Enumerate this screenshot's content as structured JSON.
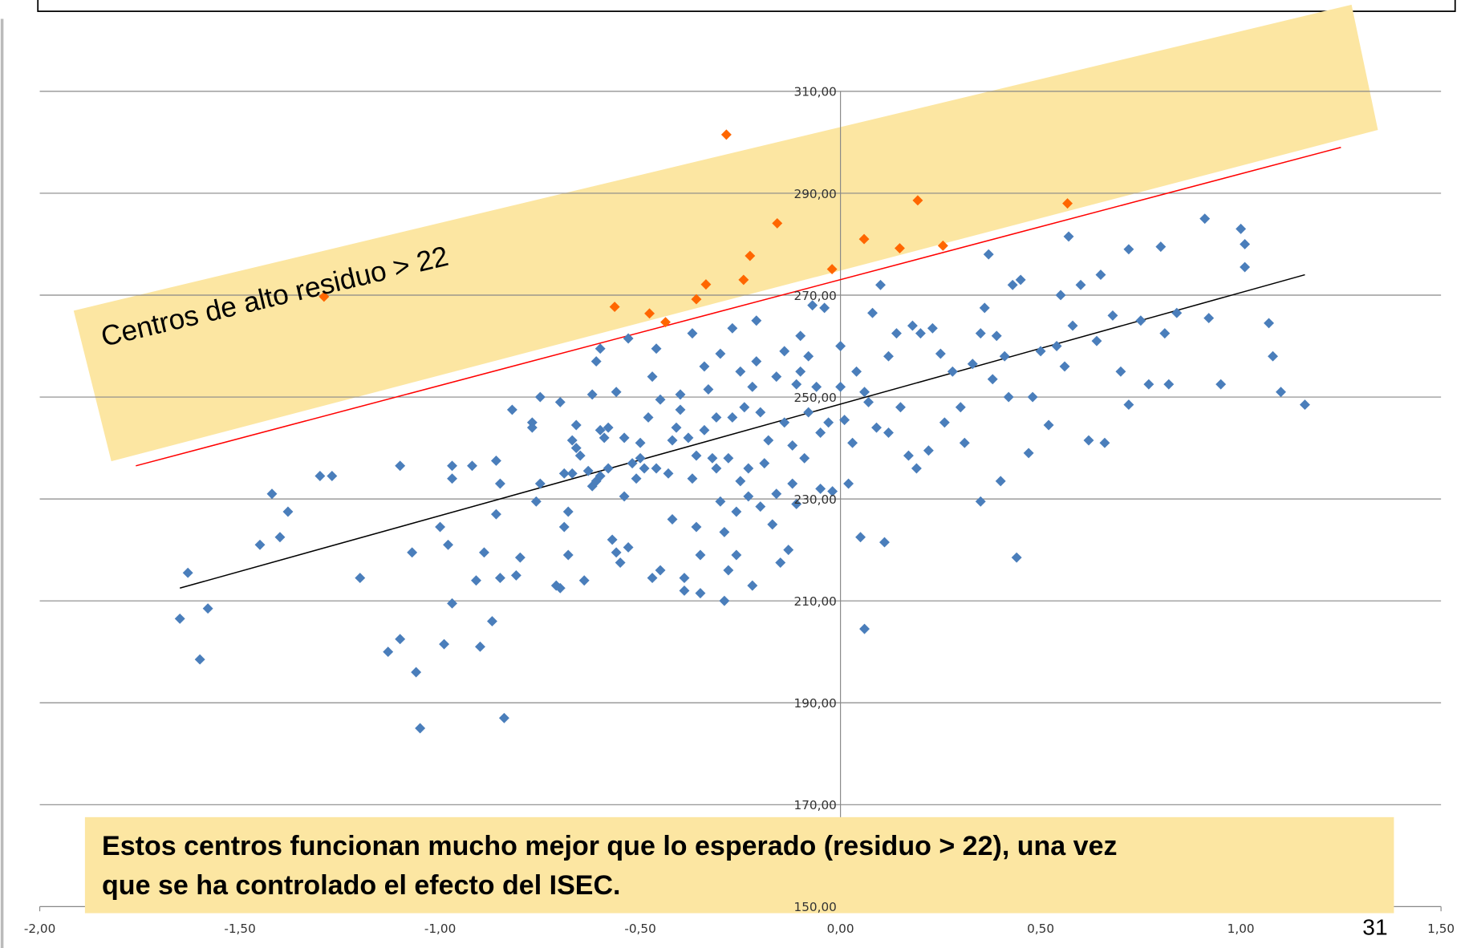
{
  "chart_data": {
    "type": "scatter",
    "xlim": [
      -2,
      1.5
    ],
    "ylim": [
      150,
      310
    ],
    "xticks": [
      {
        "value": -2,
        "label": "-2,00"
      },
      {
        "value": -1.5,
        "label": "-1,50"
      },
      {
        "value": -1,
        "label": "-1,00"
      },
      {
        "value": -0.5,
        "label": "-0,50"
      },
      {
        "value": 0,
        "label": "0,00"
      },
      {
        "value": 0.5,
        "label": "0,50"
      },
      {
        "value": 1,
        "label": "1,00"
      },
      {
        "value": 1.5,
        "label": "1,50"
      }
    ],
    "yticks": [
      {
        "value": 150,
        "label": "150,00"
      },
      {
        "value": 170,
        "label": "170,00"
      },
      {
        "value": 190,
        "label": "190,00"
      },
      {
        "value": 210,
        "label": "210,00"
      },
      {
        "value": 230,
        "label": "230,00"
      },
      {
        "value": 250,
        "label": "250,00"
      },
      {
        "value": 270,
        "label": "270,00"
      },
      {
        "value": 290,
        "label": "290,00"
      },
      {
        "value": 310,
        "label": "310,00"
      }
    ],
    "grid": true,
    "series": [
      {
        "color": "#4a7ebb",
        "x": [
          -1.65,
          -1.63,
          -1.6,
          -1.58,
          -1.45,
          -1.42,
          -1.4,
          -1.38,
          -1.3,
          -1.27,
          -1.2,
          -1.13,
          -1.1,
          -1.1,
          -1.07,
          -1.06,
          -1.05,
          -1,
          -0.99,
          -0.98,
          -0.97,
          -0.97,
          -0.97,
          -0.92,
          -0.91,
          -0.9,
          -0.89,
          -0.87,
          -0.86,
          -0.86,
          -0.85,
          -0.85,
          -0.84,
          -0.82,
          -0.81,
          -0.8,
          -0.77,
          -0.77,
          -0.76,
          -0.75,
          -0.75,
          -0.71,
          -0.7,
          -0.7,
          -0.69,
          -0.69,
          -0.68,
          -0.68,
          -0.67,
          -0.67,
          -0.66,
          -0.66,
          -0.65,
          -0.64,
          -0.63,
          -0.62,
          -0.62,
          -0.61,
          -0.6,
          -0.6,
          -0.6,
          -0.61,
          -0.59,
          -0.58,
          -0.58,
          -0.57,
          -0.56,
          -0.56,
          -0.55,
          -0.54,
          -0.54,
          -0.53,
          -0.53,
          -0.52,
          -0.51,
          -0.5,
          -0.5,
          -0.49,
          -0.48,
          -0.47,
          -0.47,
          -0.46,
          -0.46,
          -0.45,
          -0.45,
          -0.43,
          -0.42,
          -0.42,
          -0.41,
          -0.4,
          -0.4,
          -0.39,
          -0.39,
          -0.38,
          -0.37,
          -0.37,
          -0.36,
          -0.36,
          -0.35,
          -0.35,
          -0.34,
          -0.34,
          -0.33,
          -0.32,
          -0.31,
          -0.31,
          -0.3,
          -0.3,
          -0.29,
          -0.29,
          -0.28,
          -0.28,
          -0.27,
          -0.27,
          -0.26,
          -0.26,
          -0.25,
          -0.25,
          -0.24,
          -0.23,
          -0.23,
          -0.22,
          -0.22,
          -0.21,
          -0.21,
          -0.2,
          -0.2,
          -0.19,
          -0.18,
          -0.17,
          -0.16,
          -0.16,
          -0.15,
          -0.14,
          -0.14,
          -0.13,
          -0.12,
          -0.12,
          -0.11,
          -0.11,
          -0.1,
          -0.1,
          -0.09,
          -0.08,
          -0.08,
          -0.07,
          -0.06,
          -0.05,
          -0.05,
          -0.04,
          -0.03,
          -0.02,
          0,
          0,
          0.01,
          0.02,
          0.03,
          0.04,
          0.05,
          0.06,
          0.06,
          0.07,
          0.08,
          0.09,
          0.1,
          0.11,
          0.12,
          0.12,
          0.14,
          0.15,
          0.17,
          0.18,
          0.19,
          0.2,
          0.22,
          0.23,
          0.25,
          0.26,
          0.28,
          0.3,
          0.31,
          0.33,
          0.35,
          0.35,
          0.36,
          0.37,
          0.38,
          0.39,
          0.4,
          0.41,
          0.42,
          0.43,
          0.44,
          0.45,
          0.47,
          0.48,
          0.5,
          0.52,
          0.54,
          0.55,
          0.56,
          0.57,
          0.58,
          0.6,
          0.62,
          0.64,
          0.65,
          0.66,
          0.68,
          0.7,
          0.72,
          0.72,
          0.75,
          0.77,
          0.8,
          0.81,
          0.82,
          0.84,
          0.91,
          0.92,
          0.95,
          1,
          1.01,
          1.01,
          1.07,
          1.08,
          1.1,
          1.16
        ],
        "values": [
          206.5,
          215.5,
          198.5,
          208.5,
          221,
          231,
          222.5,
          227.5,
          234.5,
          234.5,
          214.5,
          200,
          236.5,
          202.5,
          219.5,
          196,
          185,
          224.5,
          201.5,
          221,
          209.5,
          236.5,
          234,
          236.5,
          214,
          201,
          219.5,
          206,
          237.5,
          227,
          233,
          214.5,
          187,
          247.5,
          215,
          218.5,
          245,
          244,
          229.5,
          250,
          233,
          213,
          212.5,
          249,
          235,
          224.5,
          219,
          227.5,
          235,
          241.5,
          240,
          244.5,
          238.5,
          214,
          235.5,
          250.5,
          232.5,
          233.5,
          234.5,
          243.5,
          259.5,
          257,
          242,
          244,
          236,
          222,
          251,
          219.5,
          217.5,
          242,
          230.5,
          220.5,
          261.5,
          237,
          234,
          238,
          241,
          236,
          246,
          254,
          214.5,
          236,
          259.5,
          249.5,
          216,
          235,
          241.5,
          226,
          244,
          250.5,
          247.5,
          212,
          214.5,
          242,
          262.5,
          234,
          238.5,
          224.5,
          211.5,
          219,
          256,
          243.5,
          251.5,
          238,
          246,
          236,
          229.5,
          258.5,
          210,
          223.5,
          216,
          238,
          263.5,
          246,
          227.5,
          219,
          255,
          233.5,
          248,
          230.5,
          236,
          252,
          213,
          257,
          265,
          247,
          228.5,
          237,
          241.5,
          225,
          254,
          231,
          217.5,
          259,
          245,
          220,
          240.5,
          233,
          252.5,
          229,
          262,
          255,
          238,
          247,
          258,
          268,
          252,
          243,
          232,
          267.5,
          245,
          231.5,
          260,
          252,
          245.5,
          233,
          241,
          255,
          222.5,
          204.5,
          251,
          249,
          266.5,
          244,
          272,
          221.5,
          258,
          243,
          262.5,
          248,
          238.5,
          264,
          236,
          262.5,
          239.5,
          263.5,
          258.5,
          245,
          255,
          248,
          241,
          256.5,
          262.5,
          229.5,
          267.5,
          278,
          253.5,
          262,
          233.5,
          258,
          250,
          272,
          218.5,
          273,
          239,
          250,
          259,
          244.5,
          260,
          270,
          256,
          281.5,
          264,
          272,
          241.5,
          261,
          274,
          241,
          266,
          255,
          279,
          248.5,
          265,
          252.5,
          279.5,
          262.5,
          252.5,
          266.5,
          285,
          265.5,
          252.5,
          283,
          275.5,
          280,
          264.5,
          258,
          251,
          248.5
        ]
      },
      {
        "color": "#ff6600",
        "x": [
          -1.29,
          -0.564,
          -0.477,
          -0.437,
          -0.36,
          -0.336,
          -0.285,
          -0.242,
          -0.226,
          -0.158,
          -0.021,
          0.059,
          0.148,
          0.193,
          0.256,
          0.567
        ],
        "values": [
          269.7,
          267.7,
          266.4,
          264.7,
          269.2,
          272.1,
          301.5,
          273,
          277.7,
          284.1,
          275.1,
          281,
          279.2,
          288.6,
          279.7,
          288
        ]
      }
    ],
    "lines": [
      {
        "color": "#000000",
        "x": [
          -1.65,
          1.16
        ],
        "values": [
          212.5,
          274
        ]
      },
      {
        "color": "#ff0000",
        "x": [
          -1.76,
          1.25
        ],
        "values": [
          236.5,
          299
        ]
      }
    ],
    "band_label": "Centros de alto residuo  > 22",
    "note": [
      "Estos centros funcionan mucho mejor que lo esperado (residuo > 22), una vez",
      "que se ha controlado el efecto del ISEC."
    ],
    "page_number": "31"
  }
}
